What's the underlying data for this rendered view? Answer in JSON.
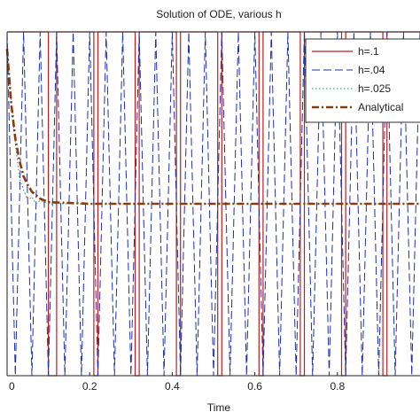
{
  "chart_data": {
    "type": "line",
    "title": "Solution of ODE, various h",
    "xlabel": "Time",
    "ylabel": "",
    "xlim": [
      0,
      1
    ],
    "ylim": [
      -1,
      1
    ],
    "x_ticks": [
      {
        "value": 0,
        "label": "0"
      },
      {
        "value": 0.2,
        "label": "0.2"
      },
      {
        "value": 0.4,
        "label": "0.4"
      },
      {
        "value": 0.6,
        "label": "0.6"
      },
      {
        "value": 0.8,
        "label": "0.8"
      }
    ],
    "legend": "top-right",
    "series": [
      {
        "name": "h=.1",
        "style": "solid",
        "color": "#b22222",
        "x": [
          0,
          0.1,
          0.1,
          0.12,
          0.12,
          0.21,
          0.21,
          0.22,
          0.22,
          0.31,
          0.31,
          0.32,
          0.32,
          0.41,
          0.41,
          0.42,
          0.42,
          0.51,
          0.51,
          0.52,
          0.52,
          0.61,
          0.61,
          0.62,
          0.62,
          0.71,
          0.71,
          0.72,
          0.72,
          0.81,
          0.81,
          0.82,
          0.82,
          0.91,
          0.91,
          0.92,
          0.92,
          1.0
        ],
        "y": [
          1,
          1,
          -1,
          -1,
          1,
          1,
          -1,
          -1,
          1,
          1,
          -1,
          -1,
          1,
          1,
          -1,
          -1,
          1,
          1,
          -1,
          -1,
          1,
          1,
          -1,
          -1,
          1,
          1,
          -1,
          -1,
          1,
          1,
          -1,
          -1,
          1,
          1,
          -1,
          -1,
          1,
          1
        ]
      },
      {
        "name": "h=.04",
        "style": "dashed",
        "color": "#1f2fa8",
        "x": [
          0,
          0.02,
          0.04,
          0.06,
          0.08,
          0.1,
          0.12,
          0.14,
          0.16,
          0.18,
          0.2,
          0.22,
          0.24,
          0.26,
          0.28,
          0.3,
          0.32,
          0.34,
          0.36,
          0.38,
          0.4,
          0.42,
          0.44,
          0.46,
          0.48,
          0.5,
          0.52,
          0.54,
          0.56,
          0.58,
          0.6,
          0.62,
          0.64,
          0.66,
          0.68,
          0.7,
          0.72,
          0.74,
          0.76,
          0.78,
          0.8,
          0.82,
          0.84,
          0.86,
          0.88,
          0.9,
          0.92,
          0.94,
          0.96,
          0.98,
          1.0
        ],
        "y": [
          1,
          -1,
          1,
          -1,
          1,
          -1,
          1,
          -1,
          1,
          -1,
          1,
          -1,
          1,
          -1,
          1,
          -1,
          1,
          -1,
          1,
          -1,
          1,
          -1,
          1,
          -1,
          1,
          -1,
          1,
          -1,
          1,
          -1,
          1,
          -1,
          1,
          -1,
          1,
          -1,
          1,
          -1,
          1,
          -1,
          1,
          -1,
          1,
          -1,
          1,
          -1,
          1,
          -1,
          1,
          -1,
          1
        ]
      },
      {
        "name": "h=.025",
        "style": "dotted",
        "color": "#2e8b57",
        "x": [
          0,
          0.01,
          0.02,
          0.03,
          0.04,
          0.05,
          0.06,
          0.07,
          0.08,
          0.1,
          0.2,
          0.3,
          0.4,
          0.5,
          0.6,
          0.7,
          0.8,
          0.9,
          1.0
        ],
        "y": [
          0.9,
          0.6,
          0.35,
          0.15,
          0.08,
          0.02,
          0.04,
          0.0,
          0.02,
          0.0,
          0.0,
          0.0,
          0.0,
          0.0,
          0.0,
          0.0,
          0.0,
          0.0,
          0.0
        ]
      },
      {
        "name": "Analytical",
        "style": "dashdot",
        "color": "#8b3a0e",
        "x": [
          0,
          0.01,
          0.02,
          0.03,
          0.04,
          0.05,
          0.06,
          0.07,
          0.08,
          0.09,
          0.1,
          0.2,
          0.3,
          0.4,
          0.5,
          0.6,
          0.7,
          0.8,
          0.9,
          1.0
        ],
        "y": [
          0.9,
          0.58,
          0.38,
          0.25,
          0.16,
          0.11,
          0.07,
          0.05,
          0.03,
          0.02,
          0.01,
          0.0,
          0.0,
          0.0,
          0.0,
          0.0,
          0.0,
          0.0,
          0.0,
          0.0
        ]
      }
    ]
  }
}
